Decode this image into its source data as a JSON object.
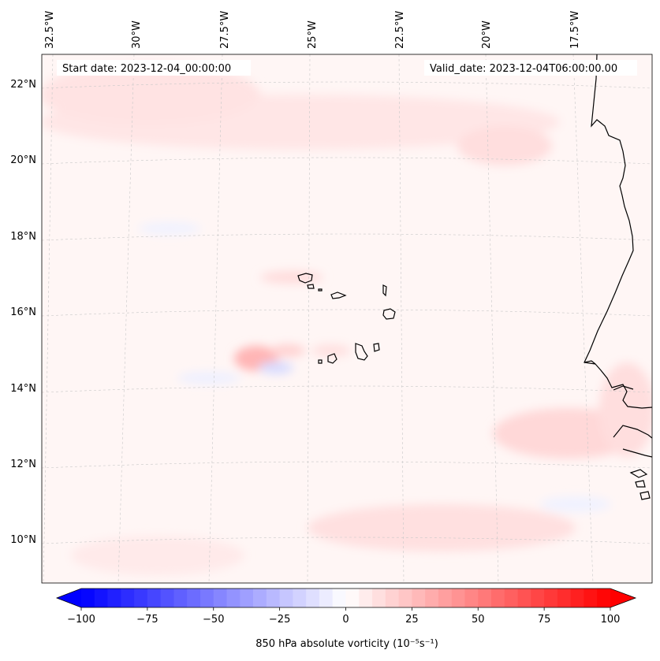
{
  "header": {
    "start_date": "Start date: 2023-12-04_00:00:00",
    "valid_date": "Valid_date: 2023-12-04T06:00:00.00"
  },
  "map": {
    "projection": "lambert conformal",
    "longitude_labels": [
      "32.5°W",
      "30°W",
      "27.5°W",
      "25°W",
      "22.5°W",
      "20°W",
      "17.5°W"
    ],
    "latitude_labels": [
      "22°N",
      "20°N",
      "18°N",
      "16°N",
      "14°N",
      "12°N",
      "10°N"
    ],
    "gridlines": "dashed grey",
    "field_colors": {
      "negative": "#0000ff",
      "zero": "#ffffff",
      "positive": "#ff0000"
    }
  },
  "colorbar": {
    "tick_labels": [
      "−100",
      "−75",
      "−50",
      "−25",
      "0",
      "25",
      "50",
      "75",
      "100"
    ],
    "label": "850 hPa absolute vorticity (10⁻⁵s⁻¹)",
    "range": [
      -100,
      100
    ],
    "step": 5
  }
}
